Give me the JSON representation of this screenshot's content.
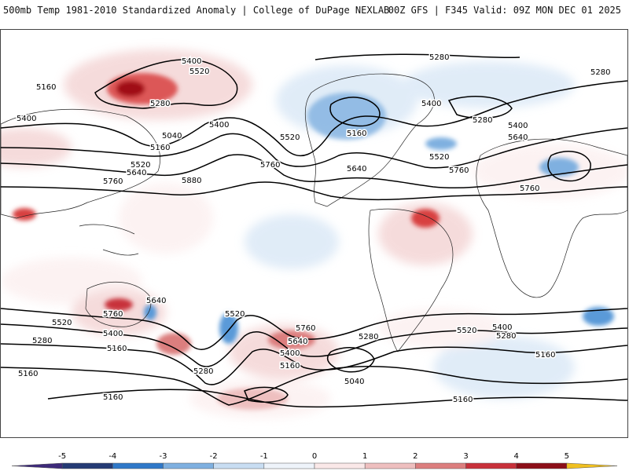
{
  "header": {
    "title": "500mb Temp 1981-2010 Standardized Anomaly | College of DuPage NEXLAB",
    "run_info": "00Z GFS | F345 Valid: 09Z MON DEC 01 2025"
  },
  "contour_labels": [
    "5400",
    "5520",
    "5160",
    "5280",
    "5400",
    "5040",
    "5160",
    "5520",
    "5640",
    "5760",
    "5880",
    "5400",
    "5520",
    "5160",
    "5640",
    "5760",
    "5280",
    "5400",
    "5520",
    "5280",
    "5400",
    "5280",
    "5400",
    "5640",
    "5760",
    "5760",
    "5640",
    "5760",
    "5520",
    "5400",
    "5280",
    "5640",
    "5760",
    "5520",
    "5400",
    "5280",
    "5160",
    "5160",
    "5280",
    "5520",
    "5400",
    "5280",
    "5160",
    "5040",
    "5160",
    "5160",
    "5160"
  ],
  "colorbar": {
    "labels": [
      "-5",
      "-4",
      "-3",
      "-2",
      "-1",
      "0",
      "1",
      "2",
      "3",
      "4",
      "5"
    ],
    "colors": [
      "#3d2a7a",
      "#243a74",
      "#2f78c8",
      "#7fb0e0",
      "#c8ddf2",
      "#eef3fa",
      "#fae8e8",
      "#eebfbf",
      "#dc7e7e",
      "#c8303a",
      "#8c0e18",
      "#f0c020"
    ]
  },
  "colors": {
    "warm_anomaly": "#d84040",
    "strong_warm": "#a01018",
    "cold_anomaly": "#5a9ad8",
    "contour": "#000000"
  }
}
